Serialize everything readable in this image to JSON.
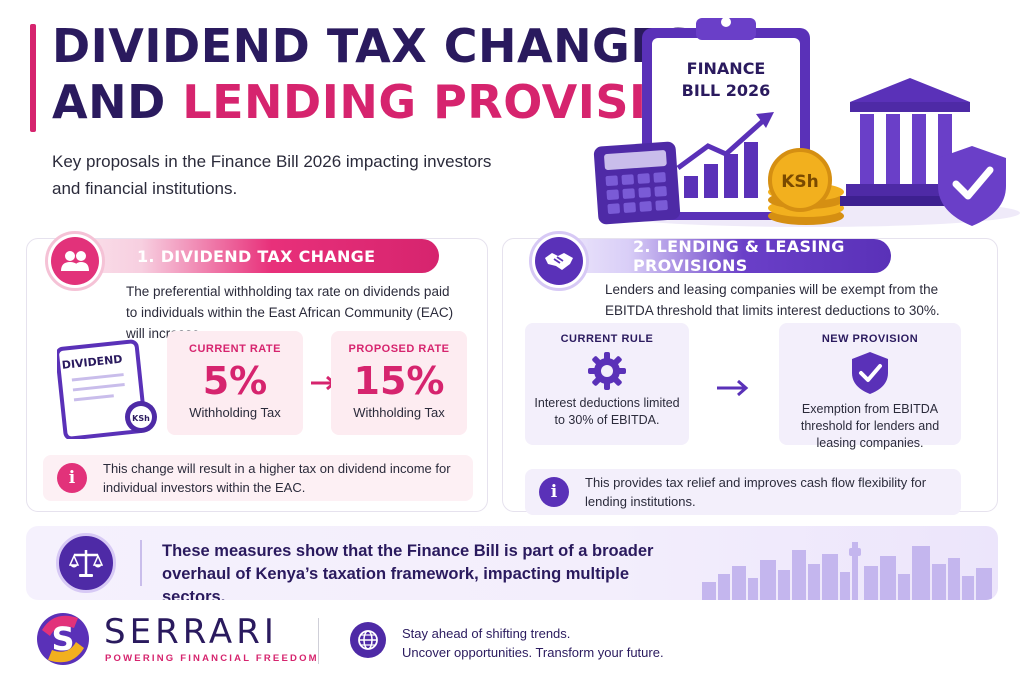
{
  "header": {
    "title_line1": "DIVIDEND TAX CHANGES",
    "title_line2a": "AND ",
    "title_line2b": "LENDING PROVISIONS",
    "subtitle": "Key proposals in the Finance Bill 2026 impacting investors and financial institutions."
  },
  "hero": {
    "clipboard_line1": "FINANCE",
    "clipboard_line2": "BILL 2026",
    "coin_label": "KSh"
  },
  "dividend_card": {
    "heading_number": "1.",
    "heading": "DIVIDEND TAX CHANGE",
    "description": "The preferential withholding tax rate on dividends paid to individuals within the East African Community (EAC) will increase.",
    "doc_label": "DIVIDEND",
    "doc_seal": "KSh",
    "current": {
      "label": "CURRENT RATE",
      "value": "5%",
      "caption": "Withholding Tax"
    },
    "proposed": {
      "label": "PROPOSED RATE",
      "value": "15%",
      "caption": "Withholding Tax"
    },
    "note": "This change will result in a higher tax on dividend income for individual investors within the EAC."
  },
  "lending_card": {
    "heading": "2. LENDING & LEASING PROVISIONS",
    "description": "Lenders and leasing companies will be exempt from the EBITDA threshold that limits interest deductions to 30%.",
    "current": {
      "label": "CURRENT RULE",
      "text": "Interest deductions limited to 30% of EBITDA."
    },
    "new": {
      "label": "NEW PROVISION",
      "text": "Exemption from EBITDA threshold for lenders and leasing companies."
    },
    "note": "This provides tax relief and improves cash flow flexibility for lending institutions."
  },
  "summary": {
    "text": "These measures show that the Finance Bill is part of a broader overhaul of Kenya’s taxation framework, impacting multiple sectors."
  },
  "footer": {
    "brand": "SERRARI",
    "tagline": "POWERING FINANCIAL FREEDOM",
    "line1": "Stay ahead of shifting trends.",
    "line2": "Uncover opportunities. Transform your future."
  },
  "colors": {
    "navy": "#2a1a5e",
    "pink": "#d6246e",
    "purple": "#5a31b8",
    "gold": "#f2b01e"
  }
}
